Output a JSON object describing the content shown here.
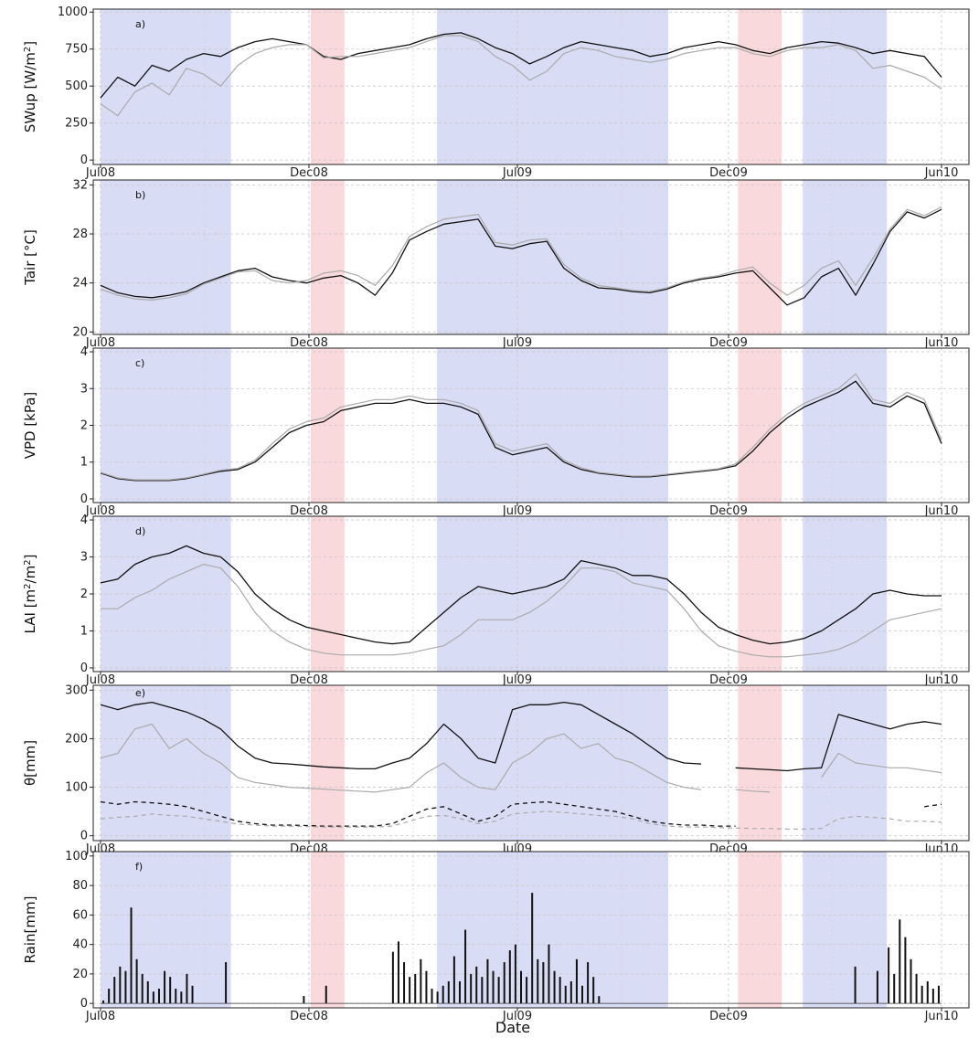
{
  "chart_data": [
    {
      "type": "line",
      "panel_label": "a)",
      "ylabel": "SWup  [W/m²]",
      "ylabel_base": "SWup  [W/m",
      "ylabel_sup": "2",
      "ylabel_tail": "]",
      "ylim": [
        -30,
        1020
      ],
      "yticks": [
        0,
        250,
        500,
        750,
        1000
      ],
      "series": [
        {
          "color": "#111111",
          "values": [
            420,
            560,
            500,
            640,
            600,
            680,
            720,
            700,
            760,
            800,
            820,
            800,
            780,
            700,
            680,
            720,
            740,
            760,
            780,
            820,
            850,
            860,
            820,
            760,
            720,
            650,
            700,
            760,
            800,
            780,
            760,
            740,
            700,
            720,
            760,
            780,
            800,
            780,
            740,
            720,
            760,
            780,
            800,
            790,
            760,
            720,
            740,
            720,
            700,
            560
          ]
        },
        {
          "color": "#aaaaaa",
          "values": [
            380,
            300,
            460,
            520,
            440,
            620,
            580,
            500,
            640,
            720,
            760,
            780,
            780,
            690,
            700,
            700,
            720,
            740,
            760,
            800,
            840,
            840,
            800,
            700,
            640,
            540,
            600,
            720,
            760,
            740,
            700,
            680,
            660,
            680,
            720,
            740,
            760,
            760,
            720,
            700,
            740,
            760,
            760,
            780,
            740,
            620,
            640,
            600,
            560,
            480
          ]
        }
      ]
    },
    {
      "type": "line",
      "panel_label": "b)",
      "ylabel": "Tair [°C]",
      "ylim": [
        19.8,
        32.4
      ],
      "yticks": [
        20,
        24,
        28,
        32
      ],
      "series": [
        {
          "color": "#111111",
          "values": [
            23.8,
            23.2,
            22.9,
            22.8,
            23.0,
            23.3,
            24.0,
            24.5,
            25.0,
            25.2,
            24.5,
            24.2,
            24.0,
            24.4,
            24.6,
            24.0,
            23.0,
            24.8,
            27.5,
            28.2,
            28.8,
            29.0,
            29.2,
            27.0,
            26.8,
            27.2,
            27.4,
            25.2,
            24.2,
            23.6,
            23.5,
            23.3,
            23.2,
            23.5,
            24.0,
            24.3,
            24.5,
            24.8,
            25.0,
            23.6,
            22.2,
            22.8,
            24.5,
            25.2,
            23.0,
            25.5,
            28.2,
            29.8,
            29.3,
            30.0
          ]
        },
        {
          "color": "#aaaaaa",
          "values": [
            23.5,
            23.0,
            22.7,
            22.6,
            22.8,
            23.1,
            23.9,
            24.4,
            24.9,
            25.0,
            24.2,
            24.0,
            24.2,
            24.8,
            25.0,
            24.6,
            23.8,
            25.4,
            27.8,
            28.6,
            29.2,
            29.4,
            29.6,
            27.3,
            27.1,
            27.5,
            27.6,
            25.5,
            24.4,
            23.8,
            23.6,
            23.4,
            23.3,
            23.6,
            24.1,
            24.4,
            24.6,
            25.0,
            25.3,
            24.0,
            23.0,
            23.8,
            25.2,
            25.8,
            23.8,
            26.0,
            28.4,
            30.0,
            29.5,
            30.2
          ]
        }
      ]
    },
    {
      "type": "line",
      "panel_label": "c)",
      "ylabel": "VPD  [kPa]",
      "ylim": [
        -0.1,
        4.1
      ],
      "yticks": [
        0,
        1,
        2,
        3,
        4
      ],
      "series": [
        {
          "color": "#111111",
          "values": [
            0.7,
            0.55,
            0.5,
            0.5,
            0.5,
            0.55,
            0.65,
            0.75,
            0.8,
            1.0,
            1.4,
            1.8,
            2.0,
            2.1,
            2.4,
            2.5,
            2.6,
            2.6,
            2.7,
            2.6,
            2.6,
            2.5,
            2.3,
            1.4,
            1.2,
            1.3,
            1.4,
            1.0,
            0.8,
            0.7,
            0.65,
            0.6,
            0.6,
            0.65,
            0.7,
            0.75,
            0.8,
            0.9,
            1.3,
            1.8,
            2.2,
            2.5,
            2.7,
            2.9,
            3.2,
            2.6,
            2.5,
            2.8,
            2.6,
            1.5
          ]
        },
        {
          "color": "#aaaaaa",
          "values": [
            0.72,
            0.57,
            0.52,
            0.52,
            0.52,
            0.57,
            0.67,
            0.78,
            0.83,
            1.05,
            1.5,
            1.9,
            2.1,
            2.2,
            2.5,
            2.6,
            2.7,
            2.7,
            2.8,
            2.7,
            2.7,
            2.6,
            2.4,
            1.5,
            1.3,
            1.4,
            1.5,
            1.05,
            0.85,
            0.72,
            0.67,
            0.62,
            0.62,
            0.67,
            0.72,
            0.77,
            0.82,
            0.95,
            1.4,
            1.9,
            2.3,
            2.6,
            2.8,
            3.0,
            3.4,
            2.7,
            2.6,
            2.9,
            2.7,
            1.6
          ]
        }
      ]
    },
    {
      "type": "line",
      "panel_label": "d)",
      "ylabel": "LAI [m²/m²]",
      "ylabel_base": "LAI [m",
      "ylabel_sup": "2",
      "ylabel_mid": "/m",
      "ylabel_sup2": "2",
      "ylabel_tail": "]",
      "ylim": [
        -0.1,
        4.1
      ],
      "yticks": [
        0,
        1,
        2,
        3,
        4
      ],
      "series": [
        {
          "color": "#111111",
          "values": [
            2.3,
            2.4,
            2.8,
            3.0,
            3.1,
            3.3,
            3.1,
            3.0,
            2.6,
            2.0,
            1.6,
            1.3,
            1.1,
            1.0,
            0.9,
            0.8,
            0.7,
            0.65,
            0.7,
            1.1,
            1.5,
            1.9,
            2.2,
            2.1,
            2.0,
            2.1,
            2.2,
            2.4,
            2.9,
            2.8,
            2.7,
            2.5,
            2.5,
            2.4,
            2.0,
            1.5,
            1.1,
            0.9,
            0.75,
            0.65,
            0.7,
            0.8,
            1.0,
            1.3,
            1.6,
            2.0,
            2.1,
            2.0,
            1.95,
            1.95
          ]
        },
        {
          "color": "#aaaaaa",
          "values": [
            1.6,
            1.6,
            1.9,
            2.1,
            2.4,
            2.6,
            2.8,
            2.7,
            2.2,
            1.5,
            1.0,
            0.7,
            0.5,
            0.4,
            0.35,
            0.35,
            0.35,
            0.35,
            0.4,
            0.5,
            0.6,
            0.9,
            1.3,
            1.3,
            1.3,
            1.5,
            1.8,
            2.2,
            2.7,
            2.7,
            2.6,
            2.3,
            2.2,
            2.1,
            1.6,
            1.0,
            0.6,
            0.45,
            0.35,
            0.3,
            0.3,
            0.35,
            0.4,
            0.5,
            0.7,
            1.0,
            1.3,
            1.4,
            1.5,
            1.6
          ]
        }
      ]
    },
    {
      "type": "line",
      "panel_label": "e)",
      "ylabel": "θ[mm]",
      "ylim": [
        -10,
        310
      ],
      "yticks": [
        0,
        100,
        200,
        300
      ],
      "series": [
        {
          "color": "#111111",
          "values": [
            270,
            260,
            270,
            275,
            265,
            255,
            240,
            220,
            185,
            160,
            150,
            148,
            145,
            142,
            140,
            138,
            138,
            150,
            160,
            190,
            230,
            200,
            160,
            150,
            260,
            270,
            270,
            275,
            270,
            250,
            230,
            210,
            185,
            160,
            150,
            148,
            null,
            140,
            138,
            136,
            134,
            138,
            140,
            250,
            240,
            230,
            220,
            230,
            235,
            230
          ]
        },
        {
          "color": "#aaaaaa",
          "values": [
            160,
            170,
            220,
            230,
            180,
            200,
            170,
            150,
            120,
            110,
            105,
            100,
            98,
            96,
            94,
            92,
            90,
            95,
            100,
            130,
            150,
            120,
            100,
            95,
            150,
            170,
            200,
            210,
            180,
            190,
            160,
            150,
            130,
            110,
            100,
            95,
            null,
            95,
            92,
            90,
            null,
            null,
            120,
            170,
            150,
            145,
            140,
            140,
            135,
            130
          ]
        },
        {
          "color": "#111111",
          "dashed": true,
          "values": [
            70,
            65,
            70,
            68,
            65,
            60,
            50,
            40,
            30,
            25,
            22,
            22,
            21,
            20,
            20,
            20,
            20,
            25,
            40,
            55,
            60,
            45,
            30,
            40,
            65,
            68,
            70,
            65,
            60,
            55,
            50,
            40,
            30,
            25,
            22,
            22,
            20,
            20,
            null,
            null,
            null,
            null,
            null,
            null,
            null,
            null,
            null,
            null,
            60,
            65
          ]
        },
        {
          "color": "#aaaaaa",
          "dashed": true,
          "values": [
            35,
            38,
            40,
            45,
            42,
            40,
            35,
            30,
            24,
            22,
            20,
            20,
            19,
            18,
            18,
            18,
            18,
            20,
            30,
            40,
            42,
            35,
            25,
            30,
            45,
            48,
            50,
            48,
            45,
            42,
            40,
            35,
            25,
            20,
            18,
            18,
            17,
            16,
            15,
            15,
            14,
            14,
            15,
            35,
            40,
            38,
            35,
            30,
            30,
            28
          ]
        }
      ]
    },
    {
      "type": "bar",
      "panel_label": "f)",
      "ylabel": "Rain[mm]",
      "xlabel": "Date",
      "ylim": [
        -3,
        103
      ],
      "yticks": [
        0,
        20,
        40,
        60,
        80,
        100
      ],
      "values": [
        2,
        10,
        18,
        25,
        22,
        65,
        30,
        20,
        15,
        8,
        10,
        22,
        18,
        10,
        8,
        20,
        12,
        0,
        0,
        0,
        0,
        0,
        28,
        0,
        0,
        0,
        0,
        0,
        0,
        0,
        0,
        0,
        0,
        0,
        0,
        0,
        5,
        0,
        0,
        0,
        12,
        0,
        0,
        0,
        0,
        0,
        0,
        0,
        0,
        0,
        0,
        0,
        35,
        42,
        28,
        18,
        20,
        30,
        22,
        10,
        8,
        12,
        15,
        32,
        15,
        50,
        20,
        25,
        18,
        30,
        22,
        18,
        28,
        36,
        40,
        22,
        18,
        75,
        30,
        28,
        40,
        22,
        18,
        12,
        15,
        30,
        12,
        28,
        18,
        5,
        0,
        0,
        0,
        0,
        0,
        0,
        0,
        0,
        0,
        0,
        0,
        0,
        0,
        0,
        0,
        0,
        0,
        0,
        0,
        0,
        0,
        0,
        0,
        0,
        0,
        0,
        0,
        0,
        0,
        0,
        0,
        0,
        0,
        0,
        0,
        0,
        0,
        0,
        0,
        0,
        0,
        0,
        0,
        0,
        0,
        25,
        0,
        0,
        0,
        22,
        0,
        38,
        20,
        57,
        45,
        30,
        20,
        12,
        15,
        10,
        12
      ]
    }
  ],
  "x_ticks": [
    "Jul08",
    "Dec08",
    "Jul09",
    "Dec09",
    "Jun10"
  ],
  "shading": {
    "wet_color": "#d9dcf5",
    "dry_color": "#f9d9dc",
    "wet_periods": [
      [
        0.0,
        0.155
      ],
      [
        0.4,
        0.675
      ],
      [
        0.835,
        0.935
      ]
    ],
    "dry_periods": [
      [
        0.25,
        0.29
      ],
      [
        0.758,
        0.81
      ]
    ]
  }
}
